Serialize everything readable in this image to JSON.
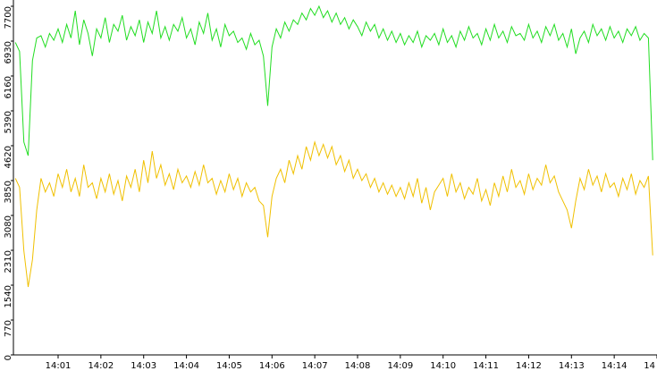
{
  "chart_data": {
    "type": "line",
    "x": [
      840,
      840.1,
      840.2,
      840.3,
      840.4,
      840.5,
      840.6,
      840.7,
      840.8,
      840.9,
      841,
      841.1,
      841.2,
      841.3,
      841.4,
      841.5,
      841.6,
      841.7,
      841.8,
      841.9,
      842,
      842.1,
      842.2,
      842.3,
      842.4,
      842.5,
      842.6,
      842.7,
      842.8,
      842.9,
      843,
      843.1,
      843.2,
      843.3,
      843.4,
      843.5,
      843.6,
      843.7,
      843.8,
      843.9,
      844,
      844.1,
      844.2,
      844.3,
      844.4,
      844.5,
      844.6,
      844.7,
      844.8,
      844.9,
      845,
      845.1,
      845.2,
      845.3,
      845.4,
      845.5,
      845.6,
      845.7,
      845.8,
      845.9,
      846,
      846.1,
      846.2,
      846.3,
      846.4,
      846.5,
      846.6,
      846.7,
      846.8,
      846.9,
      847,
      847.1,
      847.2,
      847.3,
      847.4,
      847.5,
      847.6,
      847.7,
      847.8,
      847.9,
      848,
      848.1,
      848.2,
      848.3,
      848.4,
      848.5,
      848.6,
      848.7,
      848.8,
      848.9,
      849,
      849.1,
      849.2,
      849.3,
      849.4,
      849.5,
      849.6,
      849.7,
      849.8,
      849.9,
      850,
      850.1,
      850.2,
      850.3,
      850.4,
      850.5,
      850.6,
      850.7,
      850.8,
      850.9,
      851,
      851.1,
      851.2,
      851.3,
      851.4,
      851.5,
      851.6,
      851.7,
      851.8,
      851.9,
      852,
      852.1,
      852.2,
      852.3,
      852.4,
      852.5,
      852.6,
      852.7,
      852.8,
      852.9,
      853,
      853.1,
      853.2,
      853.3,
      853.4,
      853.5,
      853.6,
      853.7,
      853.8,
      853.9,
      854,
      854.1,
      854.2,
      854.3,
      854.4,
      854.5,
      854.6,
      854.7,
      854.8,
      854.9
    ],
    "series": [
      {
        "color": "#22dd22",
        "values": [
          6900,
          6700,
          4700,
          4400,
          6500,
          7000,
          7050,
          6800,
          7100,
          6950,
          7200,
          6900,
          7300,
          7000,
          7600,
          6850,
          7400,
          7100,
          6600,
          7200,
          7000,
          7450,
          6900,
          7300,
          7150,
          7500,
          6950,
          7250,
          7050,
          7400,
          6900,
          7350,
          7100,
          7600,
          7000,
          7250,
          6950,
          7300,
          7150,
          7450,
          7000,
          7200,
          6850,
          7350,
          7100,
          7550,
          6950,
          7200,
          6800,
          7300,
          7050,
          7150,
          6900,
          7000,
          6750,
          7100,
          6850,
          6950,
          6600,
          5500,
          6800,
          7200,
          7000,
          7350,
          7150,
          7400,
          7300,
          7550,
          7400,
          7650,
          7500,
          7700,
          7450,
          7600,
          7350,
          7550,
          7300,
          7450,
          7200,
          7400,
          7250,
          7050,
          7350,
          7150,
          7300,
          7000,
          7200,
          6950,
          7150,
          6900,
          7100,
          6850,
          7050,
          6900,
          7150,
          6800,
          7050,
          6950,
          7100,
          6850,
          7200,
          6900,
          7050,
          6800,
          7150,
          6950,
          7250,
          7000,
          7100,
          6850,
          7200,
          6950,
          7300,
          7000,
          7150,
          6900,
          7250,
          7050,
          7100,
          6950,
          7300,
          7000,
          7150,
          6900,
          7250,
          7050,
          7300,
          6950,
          7100,
          6800,
          7200,
          6650,
          7000,
          7150,
          6900,
          7300,
          7050,
          7200,
          6950,
          7250,
          7000,
          7150,
          6900,
          7200,
          7050,
          7250,
          6950,
          7100,
          7000,
          4300
        ]
      },
      {
        "color": "#f0c000",
        "values": [
          3900,
          3700,
          2300,
          1500,
          2100,
          3200,
          3900,
          3600,
          3800,
          3500,
          4000,
          3700,
          4100,
          3600,
          3900,
          3500,
          4200,
          3700,
          3800,
          3450,
          3900,
          3600,
          4000,
          3550,
          3850,
          3400,
          3950,
          3700,
          4100,
          3600,
          4300,
          3800,
          4500,
          3900,
          4200,
          3750,
          4000,
          3650,
          4100,
          3800,
          3950,
          3700,
          4050,
          3750,
          4200,
          3800,
          3900,
          3550,
          3850,
          3600,
          4000,
          3650,
          3900,
          3500,
          3800,
          3600,
          3700,
          3400,
          3300,
          2600,
          3500,
          3900,
          4100,
          3800,
          4300,
          4000,
          4400,
          4100,
          4600,
          4300,
          4700,
          4400,
          4650,
          4350,
          4600,
          4200,
          4400,
          4050,
          4300,
          3900,
          4100,
          3850,
          4000,
          3700,
          3900,
          3600,
          3800,
          3550,
          3750,
          3500,
          3700,
          3450,
          3800,
          3500,
          3900,
          3350,
          3700,
          3200,
          3600,
          3750,
          3900,
          3500,
          4000,
          3600,
          3800,
          3450,
          3700,
          3550,
          3900,
          3400,
          3650,
          3300,
          3800,
          3500,
          3950,
          3600,
          4100,
          3700,
          3850,
          3550,
          4000,
          3650,
          3900,
          3750,
          4200,
          3800,
          3950,
          3600,
          3400,
          3200,
          2800,
          3400,
          3900,
          3650,
          4100,
          3750,
          3950,
          3600,
          4000,
          3700,
          3800,
          3500,
          3900,
          3650,
          4000,
          3550,
          3850,
          3700,
          3950,
          2200
        ]
      }
    ],
    "xlim": [
      839.955,
      855
    ],
    "xticks": [
      {
        "value": 841,
        "label": "14:01"
      },
      {
        "value": 842,
        "label": "14:02"
      },
      {
        "value": 843,
        "label": "14:03"
      },
      {
        "value": 844,
        "label": "14:04"
      },
      {
        "value": 845,
        "label": "14:05"
      },
      {
        "value": 846,
        "label": "14:06"
      },
      {
        "value": 847,
        "label": "14:07"
      },
      {
        "value": 848,
        "label": "14:08"
      },
      {
        "value": 849,
        "label": "14:09"
      },
      {
        "value": 850,
        "label": "14:10"
      },
      {
        "value": 851,
        "label": "14:11"
      },
      {
        "value": 852,
        "label": "14:12"
      },
      {
        "value": 853,
        "label": "14:13"
      },
      {
        "value": 854,
        "label": "14:14"
      },
      {
        "value": 855,
        "label": "14"
      }
    ],
    "ylim": [
      0,
      7700
    ],
    "yticks": [
      0,
      770,
      1540,
      2310,
      3080,
      3850,
      4620,
      5390,
      6160,
      6930,
      7700
    ]
  }
}
